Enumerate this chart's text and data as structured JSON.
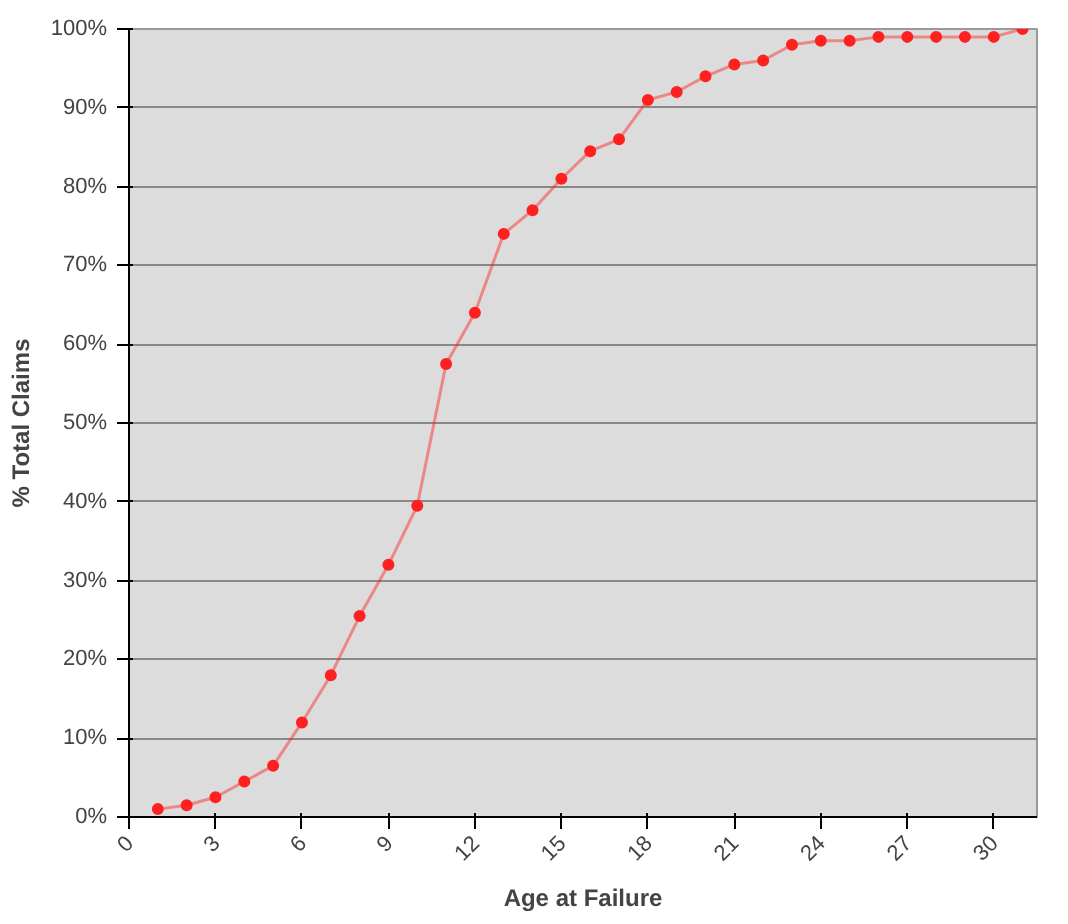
{
  "chart_data": {
    "type": "line",
    "xlabel": "Age at Failure",
    "ylabel": "% Total Claims",
    "x": [
      1,
      2,
      3,
      4,
      5,
      6,
      7,
      8,
      9,
      10,
      11,
      12,
      13,
      14,
      15,
      16,
      17,
      18,
      19,
      20,
      21,
      22,
      23,
      24,
      25,
      26,
      27,
      28,
      29,
      30,
      31
    ],
    "series": [
      {
        "color": "#ff2020",
        "values": [
          1,
          1.5,
          2.5,
          4.5,
          6.5,
          12,
          18,
          25.5,
          32,
          39.5,
          57.5,
          64,
          74,
          77,
          81,
          84.5,
          86,
          91,
          92,
          94,
          95.5,
          96,
          98,
          98.5,
          98.5,
          99,
          99,
          99,
          99,
          99,
          100
        ]
      }
    ],
    "xlim": [
      0,
      31.5
    ],
    "xticks": [
      0,
      3,
      6,
      9,
      12,
      15,
      18,
      21,
      24,
      27,
      30
    ],
    "ylim": [
      0,
      100
    ],
    "yticks": [
      {
        "value": 0,
        "label": "0%"
      },
      {
        "value": 10,
        "label": "10%"
      },
      {
        "value": 20,
        "label": "20%"
      },
      {
        "value": 30,
        "label": "30%"
      },
      {
        "value": 40,
        "label": "40%"
      },
      {
        "value": 50,
        "label": "50%"
      },
      {
        "value": 60,
        "label": "60%"
      },
      {
        "value": 70,
        "label": "70%"
      },
      {
        "value": 80,
        "label": "80%"
      },
      {
        "value": 90,
        "label": "90%"
      },
      {
        "value": 100,
        "label": "100%"
      }
    ],
    "grid": "y",
    "marker": "circle"
  }
}
